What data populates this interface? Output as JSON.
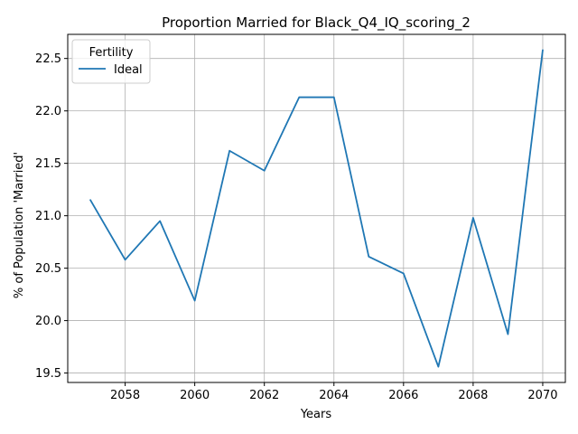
{
  "chart_data": {
    "type": "line",
    "title": "Proportion Married for Black_Q4_IQ_scoring_2",
    "xlabel": "Years",
    "ylabel": "% of Population 'Married'",
    "xlim": [
      2056.35,
      2070.65
    ],
    "ylim": [
      19.41,
      22.73
    ],
    "xticks": [
      2058,
      2060,
      2062,
      2064,
      2066,
      2068,
      2070
    ],
    "yticks": [
      19.5,
      20.0,
      20.5,
      21.0,
      21.5,
      22.0,
      22.5
    ],
    "grid": true,
    "legend": {
      "title": "Fertility",
      "placement": "top-left"
    },
    "series": [
      {
        "name": "Ideal",
        "color": "#1f77b4",
        "x": [
          2057,
          2058,
          2059,
          2060,
          2061,
          2062,
          2063,
          2064,
          2065,
          2066,
          2067,
          2068,
          2069,
          2070
        ],
        "y": [
          21.15,
          20.58,
          20.95,
          20.19,
          21.62,
          21.43,
          22.13,
          22.13,
          20.61,
          20.45,
          19.56,
          20.98,
          19.87,
          22.58
        ]
      }
    ]
  }
}
